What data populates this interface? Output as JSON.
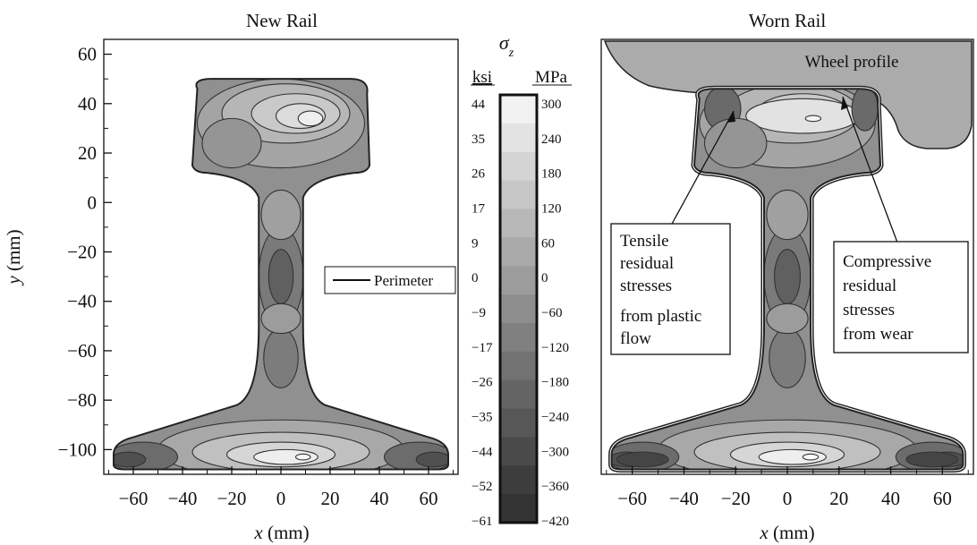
{
  "chart_data": [
    {
      "type": "heatmap",
      "title": "New Rail",
      "xlabel_var": "x",
      "xlabel_unit": "(mm)",
      "ylabel_var": "y",
      "ylabel_unit": "(mm)",
      "xticks": [
        -60,
        -40,
        -20,
        0,
        20,
        40,
        60
      ],
      "yticks": [
        60,
        40,
        20,
        0,
        -20,
        -40,
        -60,
        -80,
        -100
      ],
      "xlim": [
        -72,
        72
      ],
      "ylim": [
        -110,
        66
      ],
      "legend": [
        {
          "label": "Perimeter"
        }
      ]
    },
    {
      "type": "heatmap",
      "title": "Worn Rail",
      "xlabel_var": "x",
      "xlabel_unit": "(mm)",
      "xticks": [
        -60,
        -40,
        -20,
        0,
        20,
        40,
        60
      ],
      "xlim": [
        -72,
        72
      ],
      "ylim": [
        -110,
        66
      ],
      "annotations": [
        {
          "id": "wheel",
          "text": [
            "Wheel profile"
          ]
        },
        {
          "id": "tensile",
          "text": [
            "Tensile",
            "residual",
            "stresses",
            "from plastic",
            "flow"
          ]
        },
        {
          "id": "compressive",
          "text": [
            "Compressive",
            "residual",
            "stresses",
            "from wear"
          ]
        }
      ]
    }
  ],
  "colorbar": {
    "symbol": "σ",
    "subscript": "z",
    "left_unit": "ksi",
    "right_unit": "MPa",
    "ksi": [
      44,
      35,
      26,
      17,
      9,
      0,
      -9,
      -17,
      -26,
      -35,
      -44,
      -52,
      -61
    ],
    "mpa": [
      300,
      240,
      180,
      120,
      60,
      0,
      -60,
      -120,
      -180,
      -240,
      -300,
      -360,
      -420
    ],
    "colors": [
      "#f2f2f2",
      "#e3e3e3",
      "#d4d4d4",
      "#c6c6c6",
      "#b8b8b8",
      "#aaaaaa",
      "#9c9c9c",
      "#8e8e8e",
      "#808080",
      "#727272",
      "#646464",
      "#575757",
      "#4a4a4a",
      "#3d3d3d",
      "#333333"
    ]
  }
}
